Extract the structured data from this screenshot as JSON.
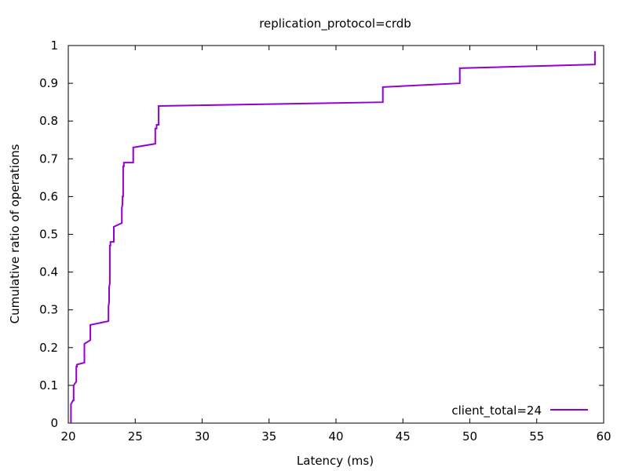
{
  "chart_data": {
    "type": "line",
    "title": "replication_protocol=crdb",
    "xlabel": "Latency (ms)",
    "ylabel": "Cumulative ratio of operations",
    "xlim": [
      20,
      60
    ],
    "ylim": [
      0,
      1
    ],
    "xticks": [
      20,
      25,
      30,
      35,
      40,
      45,
      50,
      55,
      60
    ],
    "yticks": [
      0,
      0.1,
      0.2,
      0.3,
      0.4,
      0.5,
      0.6,
      0.7,
      0.8,
      0.9,
      1
    ],
    "xtick_labels": [
      "20",
      "25",
      "30",
      "35",
      "40",
      "45",
      "50",
      "55",
      "60"
    ],
    "ytick_labels": [
      "0",
      "0.1",
      "0.2",
      "0.3",
      "0.4",
      "0.5",
      "0.6",
      "0.7",
      "0.8",
      "0.9",
      "1"
    ],
    "grid": false,
    "legend_position": "bottom-right",
    "series": [
      {
        "name": "client_total=24",
        "color": "#9400d3",
        "x": [
          20.2,
          20.2,
          20.35,
          20.4,
          20.4,
          20.6,
          20.6,
          20.65,
          20.65,
          21.2,
          21.2,
          21.65,
          21.65,
          23.0,
          23.0,
          23.05,
          23.05,
          23.1,
          23.1,
          23.15,
          23.15,
          23.4,
          23.4,
          24.0,
          24.0,
          24.05,
          24.05,
          24.1,
          24.1,
          24.15,
          24.15,
          24.85,
          24.85,
          26.5,
          26.5,
          26.6,
          26.6,
          26.75,
          26.75,
          43.5,
          43.5,
          49.25,
          49.25,
          59.35,
          59.35
        ],
        "y": [
          0.0,
          0.05,
          0.06,
          0.06,
          0.1,
          0.11,
          0.15,
          0.15,
          0.155,
          0.16,
          0.21,
          0.22,
          0.26,
          0.27,
          0.31,
          0.32,
          0.36,
          0.37,
          0.47,
          0.47,
          0.48,
          0.48,
          0.52,
          0.53,
          0.57,
          0.58,
          0.6,
          0.6,
          0.68,
          0.68,
          0.69,
          0.69,
          0.73,
          0.74,
          0.78,
          0.78,
          0.79,
          0.79,
          0.84,
          0.85,
          0.89,
          0.9,
          0.94,
          0.95,
          0.985
        ]
      }
    ]
  }
}
